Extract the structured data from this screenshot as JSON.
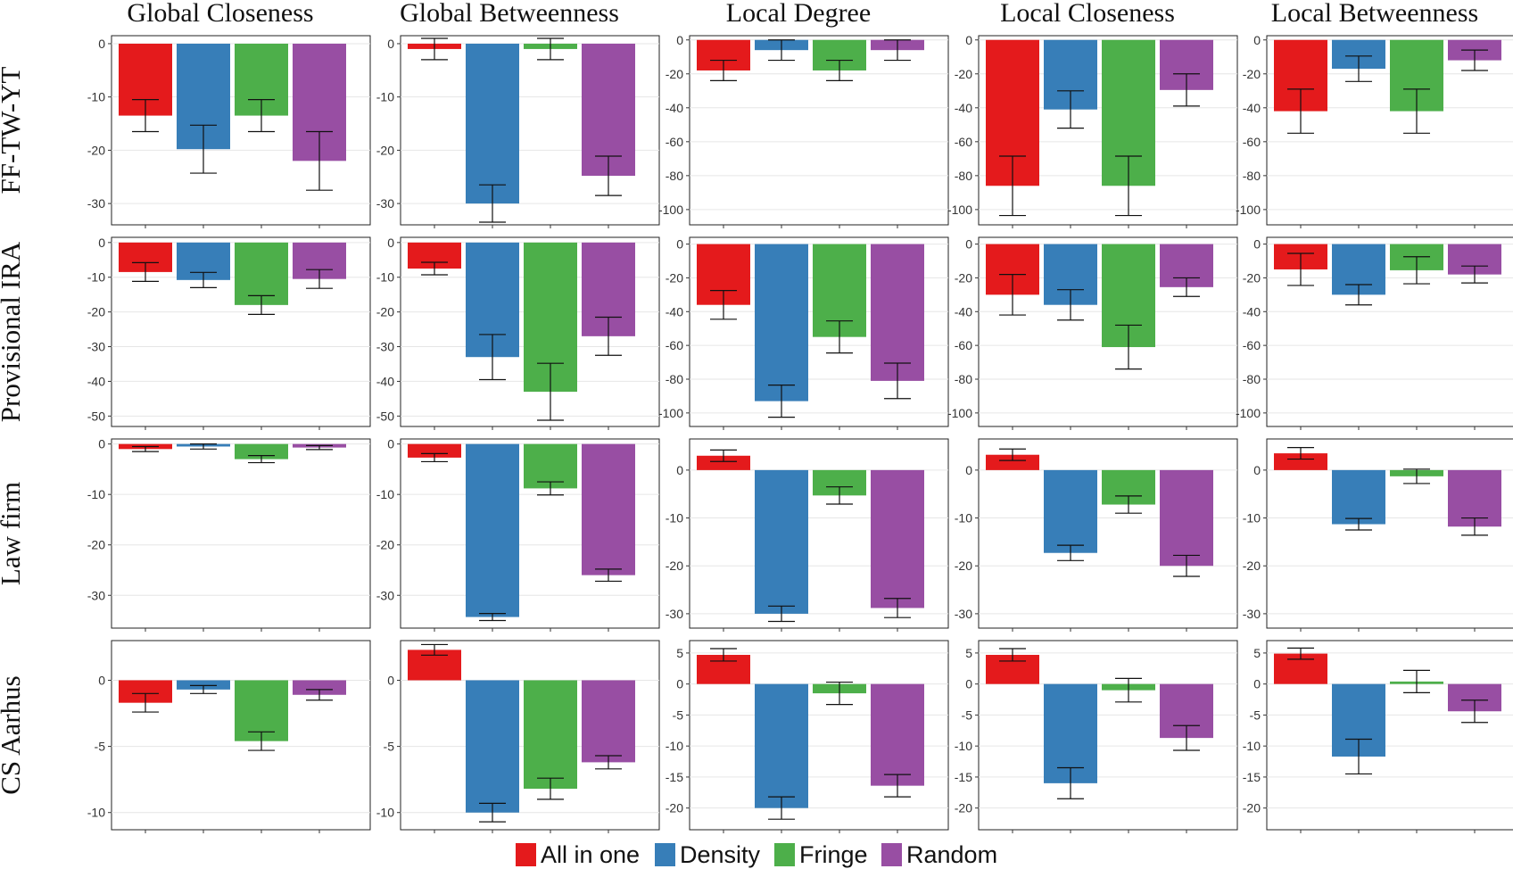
{
  "chart_data": {
    "type": "bar",
    "layout": "small-multiples",
    "column_titles": [
      "Global Closeness",
      "Global Betweenness",
      "Local Degree",
      "Local Closeness",
      "Local Betweenness"
    ],
    "row_titles": [
      "FF-TW-YT",
      "Provisional IRA",
      "Law firm",
      "CS Aarhus"
    ],
    "series_names": [
      "All in one",
      "Density",
      "Fringe",
      "Random"
    ],
    "series_colors": [
      "#e41a1c",
      "#377eb8",
      "#4daf4a",
      "#984ea3"
    ],
    "legend_position": "bottom-center",
    "panels": [
      [
        {
          "ylim": [
            -34,
            1.5
          ],
          "ticks": [
            0,
            -10,
            -20,
            -30
          ],
          "values": [
            -13.5,
            -19.8,
            -13.5,
            -22
          ],
          "errors": [
            3,
            4.5,
            3,
            5.5
          ]
        },
        {
          "ylim": [
            -34,
            1.5
          ],
          "ticks": [
            0,
            -10,
            -20,
            -30
          ],
          "values": [
            -1,
            -30,
            -1,
            -24.8
          ],
          "errors": [
            2,
            3.5,
            2,
            3.7
          ]
        },
        {
          "ylim": [
            -109,
            2.5
          ],
          "ticks": [
            0,
            -20,
            -40,
            -60,
            -80,
            -100
          ],
          "values": [
            -18,
            -6,
            -18,
            -6
          ],
          "errors": [
            6,
            6,
            6,
            6
          ]
        },
        {
          "ylim": [
            -109,
            2.5
          ],
          "ticks": [
            0,
            -20,
            -40,
            -60,
            -80,
            -100
          ],
          "values": [
            -86,
            -41,
            -86,
            -29.5
          ],
          "errors": [
            17.5,
            11,
            17.5,
            9.5
          ]
        },
        {
          "ylim": [
            -109,
            2.5
          ],
          "ticks": [
            0,
            -20,
            -40,
            -60,
            -80,
            -100
          ],
          "values": [
            -42,
            -17,
            -42,
            -12
          ],
          "errors": [
            13,
            7.5,
            13,
            6
          ]
        }
      ],
      [
        {
          "ylim": [
            -53,
            1.5
          ],
          "ticks": [
            0,
            -10,
            -20,
            -30,
            -40,
            -50
          ],
          "values": [
            -8.5,
            -10.8,
            -18,
            -10.5
          ],
          "errors": [
            2.7,
            2.2,
            2.7,
            2.7
          ]
        },
        {
          "ylim": [
            -53,
            1.5
          ],
          "ticks": [
            0,
            -10,
            -20,
            -30,
            -40,
            -50
          ],
          "values": [
            -7.5,
            -33,
            -43,
            -27
          ],
          "errors": [
            1.8,
            6.5,
            8.2,
            5.5
          ]
        },
        {
          "ylim": [
            -108,
            4
          ],
          "ticks": [
            0,
            -20,
            -40,
            -60,
            -80,
            -100
          ],
          "values": [
            -36,
            -93,
            -55,
            -81
          ],
          "errors": [
            8.5,
            9.5,
            9.5,
            10.5
          ]
        },
        {
          "ylim": [
            -108,
            4
          ],
          "ticks": [
            0,
            -20,
            -40,
            -60,
            -80,
            -100
          ],
          "values": [
            -30,
            -36,
            -61,
            -25.5
          ],
          "errors": [
            12,
            9,
            13,
            5.5
          ]
        },
        {
          "ylim": [
            -108,
            4
          ],
          "ticks": [
            0,
            -20,
            -40,
            -60,
            -80,
            -100
          ],
          "values": [
            -15,
            -30,
            -15.5,
            -18
          ],
          "errors": [
            9.5,
            6,
            8,
            5
          ]
        }
      ],
      [
        {
          "ylim": [
            -36.5,
            1
          ],
          "ticks": [
            0,
            -10,
            -20,
            -30
          ],
          "values": [
            -1,
            -0.5,
            -3,
            -0.7
          ],
          "errors": [
            0.5,
            0.5,
            0.7,
            0.4
          ]
        },
        {
          "ylim": [
            -36.5,
            1
          ],
          "ticks": [
            0,
            -10,
            -20,
            -30
          ],
          "values": [
            -2.7,
            -34.3,
            -8.8,
            -26
          ],
          "errors": [
            0.8,
            0.7,
            1.3,
            1.2
          ]
        },
        {
          "ylim": [
            -33,
            6.5
          ],
          "ticks": [
            0,
            -10,
            -20,
            -30
          ],
          "values": [
            3,
            -30,
            -5.3,
            -28.8
          ],
          "errors": [
            1.2,
            1.6,
            1.8,
            2
          ]
        },
        {
          "ylim": [
            -33,
            6.5
          ],
          "ticks": [
            0,
            -10,
            -20,
            -30
          ],
          "values": [
            3.2,
            -17.3,
            -7.2,
            -20
          ],
          "errors": [
            1.2,
            1.6,
            1.8,
            2.2
          ]
        },
        {
          "ylim": [
            -33,
            6.5
          ],
          "ticks": [
            0,
            -10,
            -20,
            -30
          ],
          "values": [
            3.5,
            -11.3,
            -1.3,
            -11.8
          ],
          "errors": [
            1.2,
            1.2,
            1.5,
            1.8
          ]
        }
      ],
      [
        {
          "ylim": [
            -11.3,
            3
          ],
          "ticks": [
            0,
            -5,
            -10
          ],
          "values": [
            -1.7,
            -0.7,
            -4.6,
            -1.1
          ],
          "errors": [
            0.7,
            0.3,
            0.7,
            0.4
          ]
        },
        {
          "ylim": [
            -11.3,
            3
          ],
          "ticks": [
            0,
            -5,
            -10
          ],
          "values": [
            2.3,
            -10,
            -8.2,
            -6.2
          ],
          "errors": [
            0.4,
            0.7,
            0.8,
            0.5
          ]
        },
        {
          "ylim": [
            -23.5,
            7
          ],
          "ticks": [
            5,
            0,
            -5,
            -10,
            -15,
            -20
          ],
          "values": [
            4.7,
            -20,
            -1.5,
            -16.4
          ],
          "errors": [
            1,
            1.8,
            1.8,
            1.8
          ]
        },
        {
          "ylim": [
            -23.5,
            7
          ],
          "ticks": [
            5,
            0,
            -5,
            -10,
            -15,
            -20
          ],
          "values": [
            4.7,
            -16,
            -1,
            -8.7
          ],
          "errors": [
            1,
            2.5,
            1.9,
            2
          ]
        },
        {
          "ylim": [
            -23.5,
            7
          ],
          "ticks": [
            5,
            0,
            -5,
            -10,
            -15,
            -20
          ],
          "values": [
            4.9,
            -11.7,
            0.4,
            -4.4
          ],
          "errors": [
            0.9,
            2.8,
            1.8,
            1.8
          ]
        }
      ]
    ]
  }
}
